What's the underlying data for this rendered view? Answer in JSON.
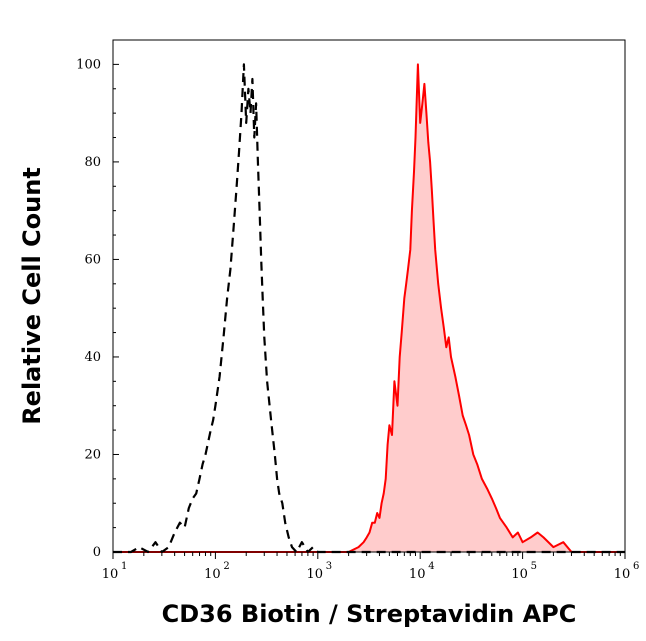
{
  "chart_data": {
    "type": "area",
    "xlabel": "CD36 Biotin / Streptavidin APC",
    "ylabel": "Relative Cell Count",
    "x_scale": "log",
    "xlim": [
      10,
      1000000
    ],
    "ylim": [
      0,
      105
    ],
    "x_ticks": [
      {
        "base": "10",
        "exp": "1",
        "value": 10
      },
      {
        "base": "10",
        "exp": "2",
        "value": 100
      },
      {
        "base": "10",
        "exp": "3",
        "value": 1000
      },
      {
        "base": "10",
        "exp": "4",
        "value": 10000
      },
      {
        "base": "10",
        "exp": "5",
        "value": 100000
      },
      {
        "base": "10",
        "exp": "6",
        "value": 1000000
      }
    ],
    "y_ticks": [
      "0",
      "20",
      "40",
      "60",
      "80",
      "100"
    ],
    "grid": false,
    "series": [
      {
        "style": "dashed",
        "color": "#000000",
        "filled": false,
        "x": [
          10,
          15,
          18,
          22,
          26,
          30,
          35,
          40,
          45,
          50,
          55,
          60,
          65,
          70,
          75,
          80,
          90,
          95,
          100,
          110,
          120,
          130,
          140,
          150,
          160,
          170,
          180,
          190,
          200,
          210,
          220,
          230,
          240,
          250,
          260,
          270,
          280,
          290,
          300,
          320,
          350,
          380,
          400,
          420,
          450,
          480,
          520,
          560,
          620,
          700,
          800,
          900,
          1000,
          1200,
          2000,
          5000,
          10000,
          30000,
          100000,
          1000000
        ],
        "y": [
          0,
          0,
          1,
          0,
          2,
          0,
          1,
          4,
          6,
          5,
          9,
          11,
          12,
          15,
          18,
          20,
          25,
          27,
          30,
          36,
          44,
          52,
          58,
          66,
          74,
          82,
          90,
          100,
          88,
          95,
          90,
          97,
          85,
          92,
          80,
          70,
          60,
          52,
          44,
          35,
          27,
          20,
          15,
          12,
          10,
          6,
          3,
          1,
          0,
          2,
          0,
          1,
          0,
          0,
          0,
          0,
          0,
          0,
          0,
          0
        ]
      },
      {
        "style": "solid",
        "color": "#ff0000",
        "fill": "#ffcccc",
        "filled": true,
        "x": [
          10,
          1000,
          2000,
          2500,
          2800,
          3000,
          3200,
          3400,
          3600,
          3800,
          4000,
          4200,
          4400,
          4600,
          4800,
          5000,
          5300,
          5600,
          6000,
          6300,
          6600,
          7000,
          7300,
          7600,
          8000,
          8300,
          8700,
          9000,
          9500,
          10000,
          10500,
          11000,
          11500,
          12000,
          12500,
          13000,
          13500,
          14000,
          15000,
          16000,
          17000,
          18000,
          19000,
          20000,
          22000,
          24000,
          26000,
          28000,
          30000,
          33000,
          36000,
          40000,
          45000,
          50000,
          55000,
          60000,
          70000,
          80000,
          90000,
          100000,
          120000,
          140000,
          160000,
          200000,
          250000,
          300000,
          1000000
        ],
        "y": [
          0,
          0,
          0,
          1,
          2,
          3,
          4,
          6,
          6,
          8,
          7,
          10,
          12,
          15,
          22,
          26,
          24,
          35,
          30,
          40,
          45,
          52,
          55,
          58,
          62,
          70,
          78,
          85,
          100,
          88,
          92,
          96,
          90,
          84,
          80,
          74,
          68,
          62,
          55,
          50,
          46,
          42,
          44,
          40,
          36,
          32,
          28,
          26,
          24,
          20,
          18,
          15,
          13,
          11,
          9,
          7,
          5,
          3,
          4,
          2,
          3,
          4,
          3,
          1,
          2,
          0,
          0
        ]
      }
    ]
  }
}
